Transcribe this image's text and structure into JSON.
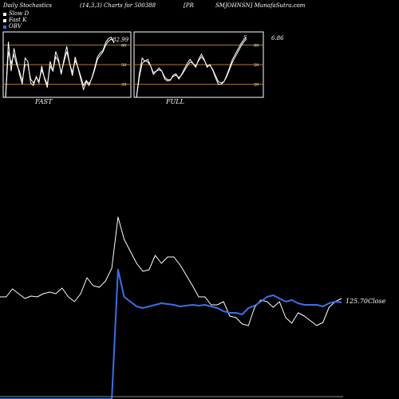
{
  "header": {
    "left": "Daily Stochastics",
    "mid": "(14,3,3) Charts for 500388",
    "pr": "[PR",
    "right": "SMJOHNSN] MunafaSutra.com"
  },
  "legend": [
    {
      "label": "Slow  D",
      "color": "#ffffff"
    },
    {
      "label": "Fast K",
      "color": "#ffffff"
    },
    {
      "label": "OBV",
      "color": "#3a6fe8"
    }
  ],
  "colors": {
    "background": "#000000",
    "line": "#ffffff",
    "obv": "#3a6fe8",
    "level": "#b07a2a"
  },
  "fast_panel": {
    "label": "FAST",
    "value_label": "82.99"
  },
  "full_panel": {
    "label": "FULL",
    "value_label": "S",
    "side_value": "6.86"
  },
  "close_label": "125.70Close",
  "chart_data": [
    {
      "type": "line",
      "name": "fast-stochastic",
      "x": [
        0,
        1,
        2,
        3,
        4,
        5,
        6,
        7,
        8,
        9,
        10,
        11,
        12,
        13,
        14,
        15,
        16,
        17,
        18,
        19,
        20,
        21,
        22,
        23,
        24,
        25,
        26,
        27,
        28,
        29,
        30,
        31,
        32,
        33,
        34,
        35,
        36,
        37,
        38,
        39
      ],
      "ylim": [
        0,
        100
      ],
      "levels": [
        20,
        50,
        80
      ],
      "tick_labels": [
        "80",
        "50",
        "20"
      ],
      "series": [
        {
          "values": [
            0,
            85,
            40,
            75,
            55,
            35,
            20,
            60,
            55,
            22,
            18,
            32,
            22,
            48,
            28,
            15,
            55,
            40,
            70,
            58,
            35,
            58,
            78,
            52,
            33,
            62,
            45,
            28,
            12,
            24,
            18,
            30,
            45,
            62,
            68,
            72,
            84,
            90,
            92,
            83
          ]
        },
        {
          "values": [
            0,
            70,
            52,
            65,
            50,
            40,
            25,
            50,
            50,
            28,
            22,
            30,
            25,
            42,
            30,
            20,
            48,
            40,
            62,
            55,
            38,
            54,
            70,
            52,
            38,
            56,
            46,
            32,
            18,
            26,
            21,
            29,
            42,
            58,
            64,
            70,
            80,
            86,
            89,
            85
          ]
        }
      ]
    },
    {
      "type": "line",
      "name": "full-stochastic",
      "x": [
        0,
        1,
        2,
        3,
        4,
        5,
        6,
        7,
        8,
        9,
        10,
        11,
        12,
        13,
        14,
        15,
        16,
        17,
        18,
        19,
        20,
        21,
        22,
        23,
        24,
        25,
        26,
        27,
        28,
        29,
        30,
        31,
        32,
        33,
        34,
        35,
        36,
        37,
        38,
        39
      ],
      "ylim": [
        0,
        100
      ],
      "levels": [
        20,
        50,
        80
      ],
      "tick_labels": [
        "80",
        "50",
        "20"
      ],
      "series": [
        {
          "values": [
            0,
            35,
            60,
            55,
            58,
            48,
            35,
            40,
            45,
            40,
            28,
            25,
            26,
            34,
            36,
            28,
            35,
            44,
            52,
            58,
            52,
            46,
            58,
            66,
            58,
            46,
            50,
            42,
            30,
            20,
            20,
            24,
            34,
            46,
            58,
            66,
            74,
            82,
            88,
            92
          ]
        },
        {
          "values": [
            0,
            30,
            52,
            56,
            54,
            48,
            38,
            40,
            42,
            40,
            31,
            27,
            27,
            32,
            34,
            30,
            34,
            41,
            48,
            54,
            52,
            48,
            56,
            62,
            57,
            48,
            49,
            43,
            33,
            24,
            22,
            24,
            32,
            43,
            54,
            62,
            70,
            78,
            85,
            89
          ]
        }
      ]
    },
    {
      "type": "line",
      "name": "price-and-obv",
      "x": [
        0,
        1,
        2,
        3,
        4,
        5,
        6,
        7,
        8,
        9,
        10,
        11,
        12,
        13,
        14,
        15,
        16,
        17,
        18,
        19,
        20,
        21,
        22,
        23,
        24,
        25,
        26,
        27,
        28,
        29,
        30,
        31,
        32,
        33,
        34,
        35,
        36,
        37,
        38,
        39,
        40,
        41,
        42,
        43,
        44,
        45,
        46,
        47,
        48,
        49,
        50,
        51,
        52,
        53,
        54,
        55
      ],
      "series": [
        {
          "name": "Close",
          "values": [
            372,
            372,
            362,
            368,
            374,
            371,
            372,
            368,
            366,
            368,
            361,
            372,
            378,
            368,
            348,
            358,
            360,
            352,
            336,
            272,
            300,
            315,
            330,
            340,
            338,
            320,
            330,
            322,
            322,
            332,
            345,
            358,
            372,
            372,
            382,
            382,
            378,
            396,
            398,
            406,
            408,
            385,
            376,
            378,
            385,
            378,
            398,
            405,
            392,
            396,
            402,
            408,
            404,
            385,
            378,
            374
          ]
        },
        {
          "name": "OBV",
          "values": [
            500,
            500,
            500,
            500,
            500,
            500,
            500,
            500,
            500,
            500,
            500,
            500,
            500,
            500,
            500,
            500,
            500,
            500,
            500,
            338,
            372,
            378,
            384,
            386,
            384,
            382,
            380,
            381,
            382,
            384,
            383,
            382,
            383,
            382,
            384,
            386,
            390,
            392,
            392,
            394,
            386,
            383,
            378,
            372,
            370,
            374,
            378,
            376,
            380,
            382,
            382,
            382,
            384,
            380,
            378,
            379
          ]
        }
      ]
    }
  ]
}
